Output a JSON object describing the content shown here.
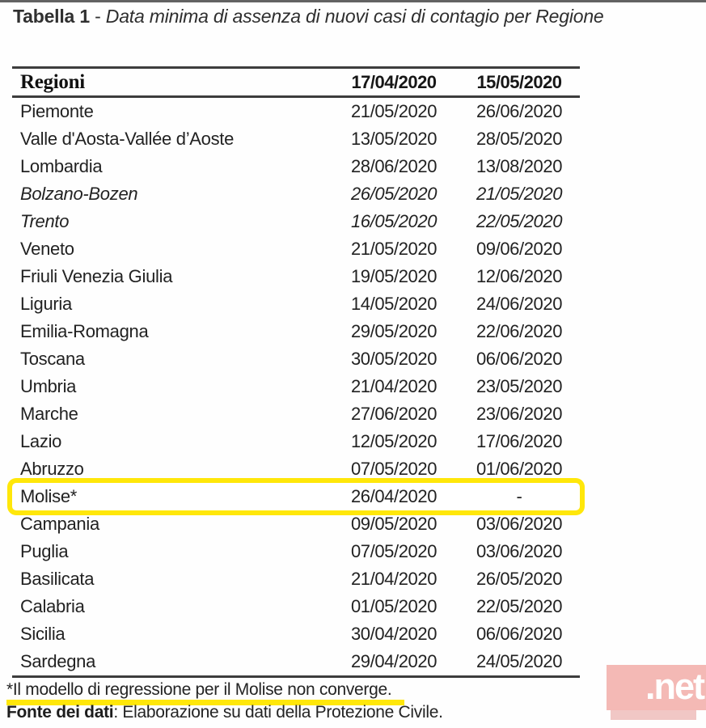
{
  "title": {
    "label": "Tabella 1",
    "separator": " - ",
    "subtitle": "Data minima di assenza di nuovi casi di contagio per Regione"
  },
  "table": {
    "columns": [
      "Regioni",
      "17/04/2020",
      "15/05/2020"
    ],
    "rows": [
      {
        "region": "Piemonte",
        "date1": "21/05/2020",
        "date2": "26/06/2020",
        "italic": false,
        "highlight": false
      },
      {
        "region": "Valle d'Aosta-Vallée d’Aoste",
        "date1": "13/05/2020",
        "date2": "28/05/2020",
        "italic": false,
        "highlight": false
      },
      {
        "region": "Lombardia",
        "date1": "28/06/2020",
        "date2": "13/08/2020",
        "italic": false,
        "highlight": false
      },
      {
        "region": "Bolzano-Bozen",
        "date1": "26/05/2020",
        "date2": "21/05/2020",
        "italic": true,
        "highlight": false
      },
      {
        "region": "Trento",
        "date1": "16/05/2020",
        "date2": "22/05/2020",
        "italic": true,
        "highlight": false
      },
      {
        "region": "Veneto",
        "date1": "21/05/2020",
        "date2": "09/06/2020",
        "italic": false,
        "highlight": false
      },
      {
        "region": "Friuli Venezia Giulia",
        "date1": "19/05/2020",
        "date2": "12/06/2020",
        "italic": false,
        "highlight": false
      },
      {
        "region": "Liguria",
        "date1": "14/05/2020",
        "date2": "24/06/2020",
        "italic": false,
        "highlight": false
      },
      {
        "region": "Emilia-Romagna",
        "date1": "29/05/2020",
        "date2": "22/06/2020",
        "italic": false,
        "highlight": false
      },
      {
        "region": "Toscana",
        "date1": "30/05/2020",
        "date2": "06/06/2020",
        "italic": false,
        "highlight": false
      },
      {
        "region": "Umbria",
        "date1": "21/04/2020",
        "date2": "23/05/2020",
        "italic": false,
        "highlight": false
      },
      {
        "region": "Marche",
        "date1": "27/06/2020",
        "date2": "23/06/2020",
        "italic": false,
        "highlight": false
      },
      {
        "region": "Lazio",
        "date1": "12/05/2020",
        "date2": "17/06/2020",
        "italic": false,
        "highlight": false
      },
      {
        "region": "Abruzzo",
        "date1": "07/05/2020",
        "date2": "01/06/2020",
        "italic": false,
        "highlight": false
      },
      {
        "region": "Molise*",
        "date1": "26/04/2020",
        "date2": "-",
        "italic": false,
        "highlight": true
      },
      {
        "region": "Campania",
        "date1": "09/05/2020",
        "date2": "03/06/2020",
        "italic": false,
        "highlight": false
      },
      {
        "region": "Puglia",
        "date1": "07/05/2020",
        "date2": "03/06/2020",
        "italic": false,
        "highlight": false
      },
      {
        "region": "Basilicata",
        "date1": "21/04/2020",
        "date2": "26/05/2020",
        "italic": false,
        "highlight": false
      },
      {
        "region": "Calabria",
        "date1": "01/05/2020",
        "date2": "22/05/2020",
        "italic": false,
        "highlight": false
      },
      {
        "region": "Sicilia",
        "date1": "30/04/2020",
        "date2": "06/06/2020",
        "italic": false,
        "highlight": false
      },
      {
        "region": "Sardegna",
        "date1": "29/04/2020",
        "date2": "24/05/2020",
        "italic": false,
        "highlight": false
      }
    ]
  },
  "footnote": "*Il modello di regressione per il Molise non converge.",
  "source": {
    "label": "Fonte dei dati",
    "text": ": Elaborazione su dati della Protezione Civile."
  },
  "watermark": {
    "text": ".net"
  },
  "colors": {
    "text": "#1b1b1b",
    "border": "#3d3d3d",
    "highlight_yellow": "#ffe70a",
    "watermark_bg": "#f4b9b5",
    "watermark_text": "#ffffff"
  }
}
